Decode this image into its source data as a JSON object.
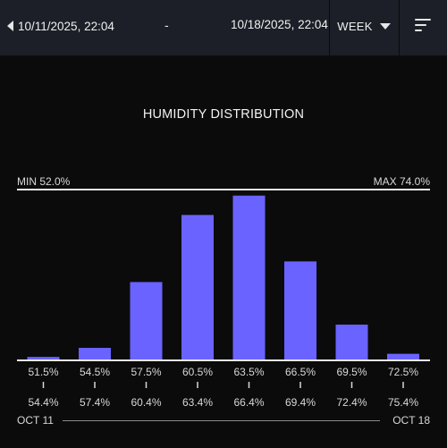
{
  "header": {
    "start": "10/11/2025, 22:04",
    "separator": "-",
    "end": "10/18/2025, 22:04",
    "period": "WEEK",
    "icons": {
      "back": "chevron-left-icon",
      "period": "chevron-down-icon",
      "sort": "sort-icon"
    }
  },
  "chart": {
    "min_label": "MIN 52.0%",
    "max_label": "MAX 74.0%",
    "bar_color": "#6a63ff"
  },
  "footer": {
    "start": "OCT 11",
    "end": "OCT 18"
  },
  "chart_data": {
    "type": "bar",
    "title": "HUMIDITY DISTRIBUTION",
    "categories": [
      "51.5%",
      "54.5%",
      "57.5%",
      "60.5%",
      "63.5%",
      "66.5%",
      "69.5%",
      "72.5%"
    ],
    "bin_upper_labels": [
      "54.4%",
      "57.4%",
      "60.4%",
      "63.4%",
      "66.4%",
      "69.4%",
      "72.4%",
      "75.4%"
    ],
    "values": [
      1,
      4.5,
      30,
      56,
      63.5,
      38,
      13.5,
      2.2
    ],
    "ylim": [
      0,
      70
    ],
    "grid": false
  }
}
